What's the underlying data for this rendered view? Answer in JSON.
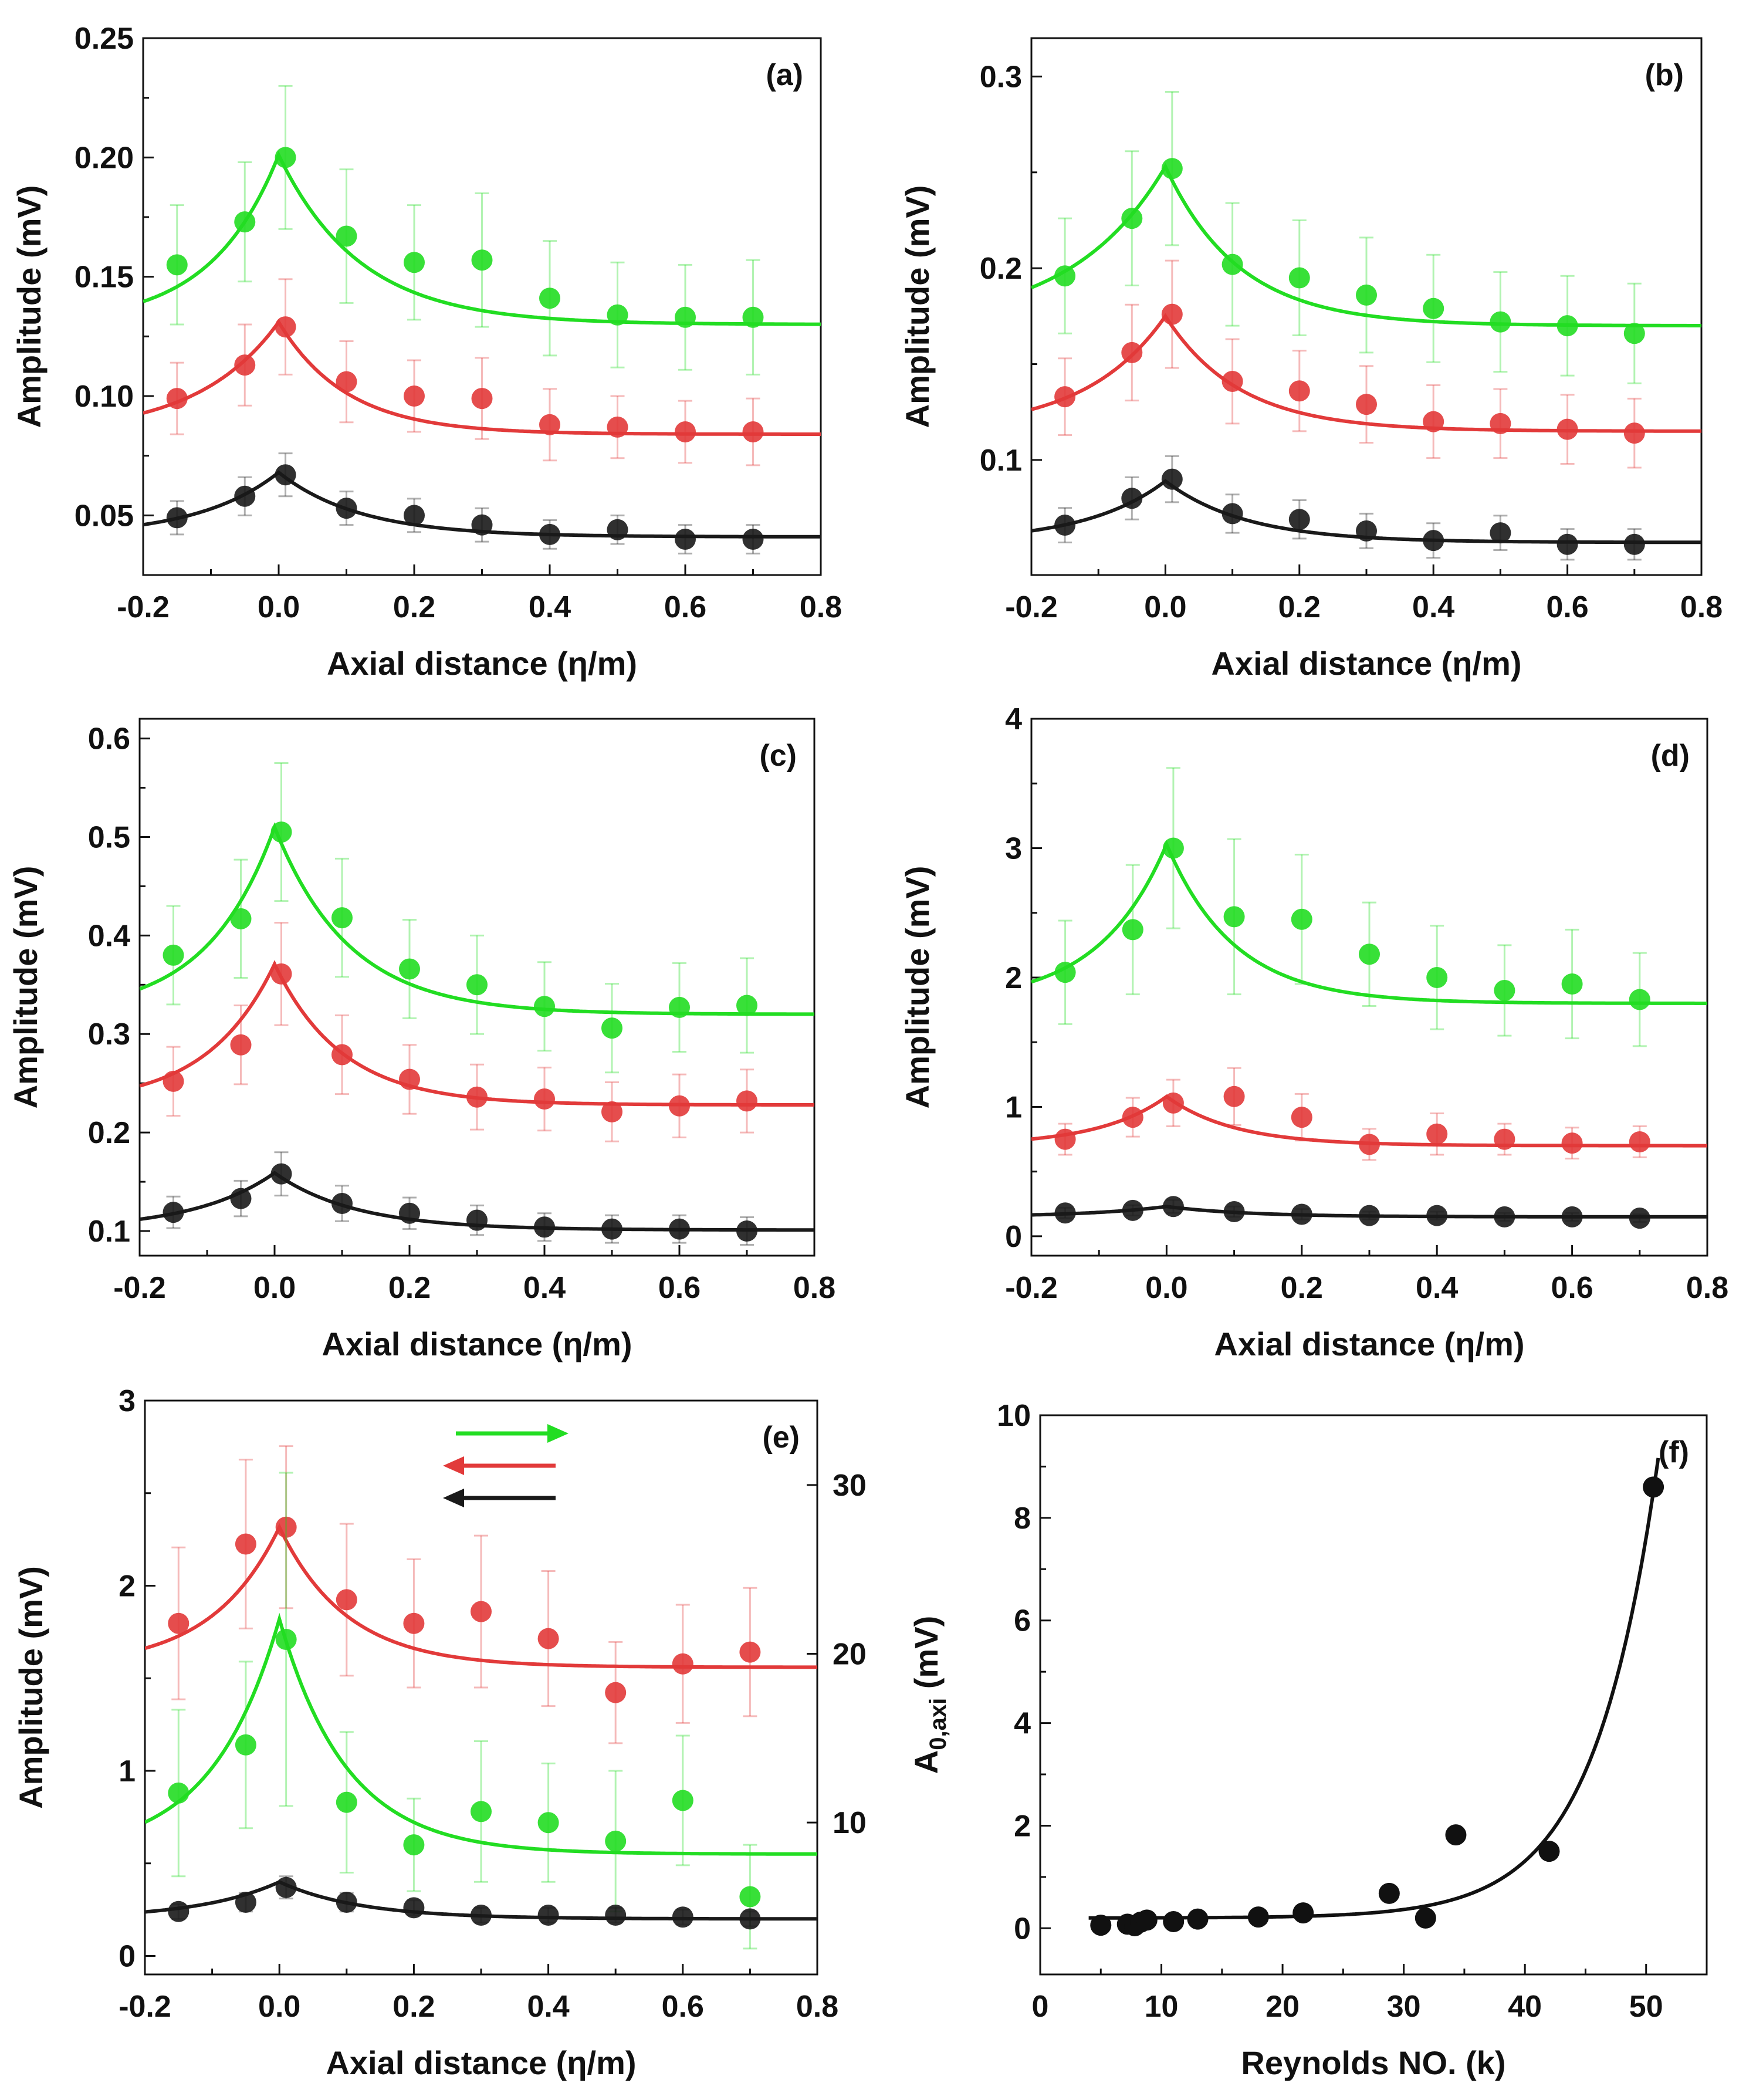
{
  "colors": {
    "green": "#22dd22",
    "red": "#e23a3a",
    "black": "#1a1a1a",
    "errorbar_alpha": 0.35
  },
  "chart_data": [
    {
      "panel": "a",
      "type": "scatter",
      "xlabel": "Axial distance (η/m)",
      "ylabel": "Amplitude (mV)",
      "xlim": [
        -0.2,
        0.8
      ],
      "ylim": [
        0.025,
        0.25
      ],
      "xticks": [
        "-0.2",
        "0.0",
        "0.2",
        "0.4",
        "0.6",
        "0.8"
      ],
      "yticks": [
        "0.05",
        "0.10",
        "0.15",
        "0.20",
        "0.25"
      ],
      "x": [
        -0.15,
        -0.05,
        0.01,
        0.1,
        0.2,
        0.3,
        0.4,
        0.5,
        0.6,
        0.7
      ],
      "series": [
        {
          "name": "green",
          "color": "green",
          "values": [
            0.155,
            0.173,
            0.2,
            0.167,
            0.156,
            0.157,
            0.141,
            0.134,
            0.133,
            0.133
          ],
          "err": [
            0.025,
            0.025,
            0.03,
            0.028,
            0.024,
            0.028,
            0.024,
            0.022,
            0.022,
            0.024
          ],
          "fit": {
            "base": 0.13,
            "amp": 0.071,
            "ll": 0.1,
            "lr": 0.12
          }
        },
        {
          "name": "red",
          "color": "red",
          "values": [
            0.099,
            0.113,
            0.129,
            0.106,
            0.1,
            0.099,
            0.088,
            0.087,
            0.085,
            0.085
          ],
          "err": [
            0.015,
            0.017,
            0.02,
            0.017,
            0.015,
            0.017,
            0.015,
            0.013,
            0.013,
            0.014
          ],
          "fit": {
            "base": 0.084,
            "amp": 0.047,
            "ll": 0.12,
            "lr": 0.1
          }
        },
        {
          "name": "black",
          "color": "black",
          "values": [
            0.049,
            0.058,
            0.067,
            0.053,
            0.05,
            0.046,
            0.042,
            0.044,
            0.04,
            0.04
          ],
          "err": [
            0.007,
            0.008,
            0.009,
            0.007,
            0.007,
            0.007,
            0.006,
            0.006,
            0.006,
            0.006
          ],
          "fit": {
            "base": 0.041,
            "amp": 0.027,
            "ll": 0.12,
            "lr": 0.12
          }
        }
      ]
    },
    {
      "panel": "b",
      "type": "scatter",
      "xlabel": "Axial distance (η/m)",
      "ylabel": "Amplitude (mV)",
      "xlim": [
        -0.2,
        0.8
      ],
      "ylim": [
        0.04,
        0.32
      ],
      "xticks": [
        "-0.2",
        "0.0",
        "0.2",
        "0.4",
        "0.6",
        "0.8"
      ],
      "yticks": [
        "0.1",
        "0.2",
        "0.3"
      ],
      "x": [
        -0.15,
        -0.05,
        0.01,
        0.1,
        0.2,
        0.3,
        0.4,
        0.5,
        0.6,
        0.7
      ],
      "series": [
        {
          "name": "green",
          "color": "green",
          "values": [
            0.196,
            0.226,
            0.252,
            0.202,
            0.195,
            0.186,
            0.179,
            0.172,
            0.17,
            0.166
          ],
          "err": [
            0.03,
            0.035,
            0.04,
            0.032,
            0.03,
            0.03,
            0.028,
            0.026,
            0.026,
            0.026
          ],
          "fit": {
            "base": 0.17,
            "amp": 0.083,
            "ll": 0.14,
            "lr": 0.11
          }
        },
        {
          "name": "red",
          "color": "red",
          "values": [
            0.133,
            0.156,
            0.176,
            0.141,
            0.136,
            0.129,
            0.12,
            0.119,
            0.116,
            0.114
          ],
          "err": [
            0.02,
            0.025,
            0.028,
            0.022,
            0.021,
            0.02,
            0.019,
            0.018,
            0.018,
            0.018
          ],
          "fit": {
            "base": 0.115,
            "amp": 0.06,
            "ll": 0.12,
            "lr": 0.11
          }
        },
        {
          "name": "black",
          "color": "black",
          "values": [
            0.066,
            0.08,
            0.09,
            0.072,
            0.069,
            0.063,
            0.058,
            0.062,
            0.056,
            0.056
          ],
          "err": [
            0.009,
            0.011,
            0.012,
            0.01,
            0.01,
            0.009,
            0.009,
            0.009,
            0.008,
            0.008
          ],
          "fit": {
            "base": 0.057,
            "amp": 0.032,
            "ll": 0.12,
            "lr": 0.12
          }
        }
      ]
    },
    {
      "panel": "c",
      "type": "scatter",
      "xlabel": "Axial distance (η/m)",
      "ylabel": "Amplitude (mV)",
      "xlim": [
        -0.2,
        0.8
      ],
      "ylim": [
        0.075,
        0.62
      ],
      "xticks": [
        "-0.2",
        "0.0",
        "0.2",
        "0.4",
        "0.6",
        "0.8"
      ],
      "yticks": [
        "0.1",
        "0.2",
        "0.3",
        "0.4",
        "0.5",
        "0.6"
      ],
      "x": [
        -0.15,
        -0.05,
        0.01,
        0.1,
        0.2,
        0.3,
        0.4,
        0.5,
        0.6,
        0.7
      ],
      "series": [
        {
          "name": "green",
          "color": "green",
          "values": [
            0.38,
            0.417,
            0.505,
            0.418,
            0.366,
            0.35,
            0.328,
            0.306,
            0.327,
            0.329
          ],
          "err": [
            0.05,
            0.06,
            0.07,
            0.06,
            0.05,
            0.05,
            0.045,
            0.045,
            0.045,
            0.048
          ],
          "fit": {
            "base": 0.32,
            "amp": 0.19,
            "ll": 0.1,
            "lr": 0.11
          }
        },
        {
          "name": "red",
          "color": "red",
          "values": [
            0.252,
            0.289,
            0.361,
            0.279,
            0.254,
            0.236,
            0.234,
            0.221,
            0.227,
            0.232
          ],
          "err": [
            0.035,
            0.04,
            0.052,
            0.04,
            0.035,
            0.033,
            0.032,
            0.03,
            0.032,
            0.032
          ],
          "fit": {
            "base": 0.228,
            "amp": 0.143,
            "ll": 0.1,
            "lr": 0.1
          }
        },
        {
          "name": "black",
          "color": "black",
          "values": [
            0.119,
            0.133,
            0.158,
            0.128,
            0.118,
            0.111,
            0.104,
            0.102,
            0.102,
            0.1
          ],
          "err": [
            0.016,
            0.018,
            0.022,
            0.018,
            0.016,
            0.015,
            0.014,
            0.014,
            0.014,
            0.014
          ],
          "fit": {
            "base": 0.101,
            "amp": 0.058,
            "ll": 0.12,
            "lr": 0.12
          }
        }
      ]
    },
    {
      "panel": "d",
      "type": "scatter",
      "xlabel": "Axial distance (η/m)",
      "ylabel": "Amplitude (mV)",
      "xlim": [
        -0.2,
        0.8
      ],
      "ylim": [
        -0.15,
        4.0
      ],
      "xticks": [
        "-0.2",
        "0.0",
        "0.2",
        "0.4",
        "0.6",
        "0.8"
      ],
      "yticks": [
        "0",
        "1",
        "2",
        "3",
        "4"
      ],
      "x": [
        -0.15,
        -0.05,
        0.01,
        0.1,
        0.2,
        0.3,
        0.4,
        0.5,
        0.6,
        0.7
      ],
      "series": [
        {
          "name": "green",
          "color": "green",
          "values": [
            2.04,
            2.37,
            3.0,
            2.47,
            2.45,
            2.18,
            2.0,
            1.9,
            1.95,
            1.83
          ],
          "err": [
            0.4,
            0.5,
            0.62,
            0.6,
            0.5,
            0.4,
            0.4,
            0.35,
            0.42,
            0.36
          ],
          "fit": {
            "base": 1.8,
            "amp": 1.23,
            "ll": 0.1,
            "lr": 0.1
          }
        },
        {
          "name": "red",
          "color": "red",
          "values": [
            0.75,
            0.92,
            1.03,
            1.08,
            0.92,
            0.71,
            0.79,
            0.75,
            0.72,
            0.73
          ],
          "err": [
            0.12,
            0.15,
            0.18,
            0.22,
            0.18,
            0.12,
            0.16,
            0.12,
            0.12,
            0.12
          ],
          "fit": {
            "base": 0.7,
            "amp": 0.38,
            "ll": 0.1,
            "lr": 0.1
          }
        },
        {
          "name": "black",
          "color": "black",
          "values": [
            0.18,
            0.2,
            0.23,
            0.19,
            0.17,
            0.16,
            0.16,
            0.15,
            0.15,
            0.14
          ],
          "err": [
            0.04,
            0.04,
            0.05,
            0.04,
            0.04,
            0.03,
            0.03,
            0.03,
            0.03,
            0.03
          ],
          "fit": {
            "base": 0.15,
            "amp": 0.08,
            "ll": 0.12,
            "lr": 0.12
          }
        }
      ]
    },
    {
      "panel": "e",
      "type": "scatter",
      "xlabel": "Axial distance (η/m)",
      "ylabel": "Amplitude (mV)",
      "xlim": [
        -0.2,
        0.8
      ],
      "ylim": [
        -0.1,
        3.0
      ],
      "xticks": [
        "-0.2",
        "0.0",
        "0.2",
        "0.4",
        "0.6",
        "0.8"
      ],
      "yticks": [
        "0",
        "1",
        "2",
        "3"
      ],
      "y2lim": [
        1.0,
        35.0
      ],
      "y2ticks": [
        "10",
        "20",
        "30"
      ],
      "legend_arrows": [
        {
          "color": "green",
          "direction": "right"
        },
        {
          "color": "red",
          "direction": "left"
        },
        {
          "color": "black",
          "direction": "left"
        }
      ],
      "x": [
        -0.15,
        -0.05,
        0.01,
        0.1,
        0.2,
        0.3,
        0.4,
        0.5,
        0.6,
        0.7
      ],
      "series": [
        {
          "name": "red",
          "color": "red",
          "axis": "right",
          "values": [
            21.8,
            26.5,
            27.5,
            23.2,
            21.8,
            22.5,
            20.9,
            17.7,
            19.4,
            20.1
          ],
          "err": [
            4.5,
            5.0,
            4.8,
            4.5,
            3.8,
            4.5,
            4.0,
            3.0,
            3.5,
            3.8
          ],
          "fit": {
            "base": 19.2,
            "amp": 8.3,
            "ll": 0.1,
            "lr": 0.1
          }
        },
        {
          "name": "green",
          "color": "green",
          "axis": "left",
          "values": [
            0.88,
            1.14,
            1.71,
            0.83,
            0.6,
            0.78,
            0.72,
            0.62,
            0.84,
            0.32
          ],
          "err": [
            0.45,
            0.45,
            0.9,
            0.38,
            0.25,
            0.38,
            0.32,
            0.38,
            0.35,
            0.28
          ],
          "fit": {
            "base": 0.55,
            "amp": 1.27,
            "ll": 0.1,
            "lr": 0.1
          }
        },
        {
          "name": "black",
          "color": "black",
          "axis": "left",
          "values": [
            0.24,
            0.29,
            0.37,
            0.29,
            0.26,
            0.22,
            0.22,
            0.22,
            0.21,
            0.2
          ],
          "err": [
            0.04,
            0.05,
            0.06,
            0.05,
            0.04,
            0.04,
            0.04,
            0.04,
            0.04,
            0.04
          ],
          "fit": {
            "base": 0.2,
            "amp": 0.2,
            "ll": 0.12,
            "lr": 0.12
          }
        }
      ]
    },
    {
      "panel": "f",
      "type": "scatter",
      "xlabel": "Reynolds NO. (k)",
      "ylabel": "A",
      "ylabel_sub": "0,axi",
      "ylabel_unit": " (mV)",
      "xlim": [
        0,
        55
      ],
      "ylim": [
        -0.9,
        10.0
      ],
      "xticks": [
        "0",
        "10",
        "20",
        "30",
        "40",
        "50"
      ],
      "yticks": [
        "0",
        "2",
        "4",
        "6",
        "8",
        "10"
      ],
      "points": [
        {
          "x": 5.0,
          "y": 0.06
        },
        {
          "x": 7.2,
          "y": 0.08
        },
        {
          "x": 7.8,
          "y": 0.05
        },
        {
          "x": 8.3,
          "y": 0.12
        },
        {
          "x": 8.8,
          "y": 0.16
        },
        {
          "x": 11.0,
          "y": 0.13
        },
        {
          "x": 13.0,
          "y": 0.18
        },
        {
          "x": 18.0,
          "y": 0.22
        },
        {
          "x": 21.7,
          "y": 0.3
        },
        {
          "x": 28.8,
          "y": 0.68
        },
        {
          "x": 31.8,
          "y": 0.2
        },
        {
          "x": 34.3,
          "y": 1.82
        },
        {
          "x": 42.0,
          "y": 1.5
        },
        {
          "x": 50.6,
          "y": 8.6
        }
      ],
      "fit": {
        "type": "exponential",
        "a": 0.2,
        "b": 0.000555,
        "c": 0.19
      }
    }
  ]
}
